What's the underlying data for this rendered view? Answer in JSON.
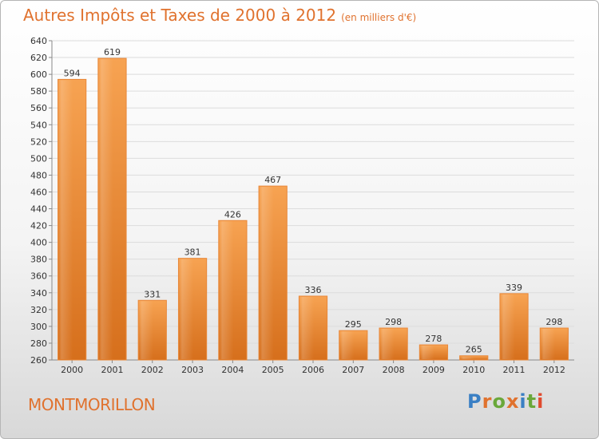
{
  "title": "Autres Impôts et Taxes de 2000 à 2012",
  "unit_label": "(en milliers d'€)",
  "commune": "MONTMORILLON",
  "logo": {
    "text": "Proxiti",
    "colors": [
      "#3a7fc4",
      "#e0722e",
      "#6aa83a",
      "#e0722e",
      "#3a7fc4",
      "#6aa83a",
      "#e04a2e"
    ]
  },
  "chart_data": {
    "type": "bar",
    "categories": [
      "2000",
      "2001",
      "2002",
      "2003",
      "2004",
      "2005",
      "2006",
      "2007",
      "2008",
      "2009",
      "2010",
      "2011",
      "2012"
    ],
    "values": [
      594,
      619,
      331,
      381,
      426,
      467,
      336,
      295,
      298,
      278,
      265,
      339,
      298
    ],
    "ylim": [
      260,
      640
    ],
    "yticks": [
      260,
      280,
      300,
      320,
      340,
      360,
      380,
      400,
      420,
      440,
      460,
      480,
      500,
      520,
      540,
      560,
      580,
      600,
      620,
      640
    ],
    "grid": true,
    "bar_color": "#f0903a"
  }
}
